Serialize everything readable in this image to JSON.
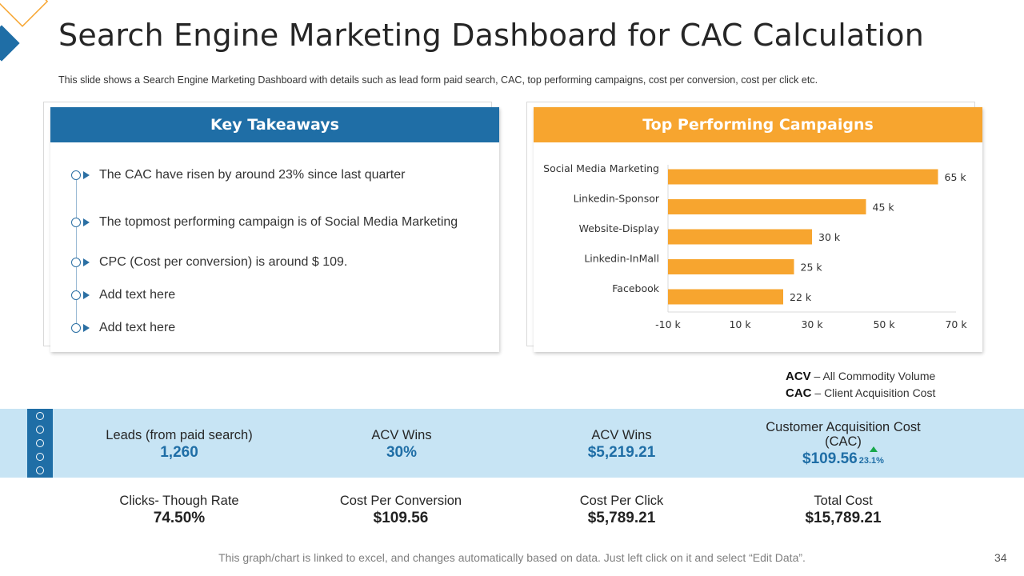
{
  "header": {
    "title": "Search Engine Marketing Dashboard for CAC Calculation",
    "subtitle": "This slide shows a Search Engine Marketing Dashboard with details such as lead form paid search, CAC, top performing campaigns, cost per conversion, cost per click etc."
  },
  "key_takeaways": {
    "title": "Key Takeaways",
    "items": [
      "The CAC have risen by around 23% since last quarter",
      "The topmost performing campaign is of Social Media Marketing",
      "CPC (Cost per conversion)  is around $ 109.",
      "Add text here",
      "Add text here"
    ]
  },
  "top_campaigns": {
    "title": "Top Performing Campaigns"
  },
  "chart_data": {
    "type": "bar",
    "orientation": "horizontal",
    "title": "Top Performing Campaigns",
    "categories": [
      "Social Media Marketing",
      "Linkedin-Sponsor",
      "Website-Display",
      "Linkedin-InMall",
      "Facebook"
    ],
    "values": [
      65,
      45,
      30,
      25,
      22
    ],
    "value_labels": [
      "65 k",
      "45 k",
      "30 k",
      "25 k",
      "22 k"
    ],
    "xlim": [
      -10,
      70
    ],
    "x_ticks": [
      -10,
      10,
      30,
      50,
      70
    ],
    "x_tick_labels": [
      "-10 k",
      "10 k",
      "30 k",
      "50 k",
      "70 k"
    ],
    "bar_color": "#f7a52f",
    "grid": false
  },
  "legend": {
    "acv_abbr": "ACV",
    "acv_full": " – All Commodity Volume",
    "cac_abbr": "CAC",
    "cac_full": " – Client Acquisition Cost"
  },
  "kpis_top": [
    {
      "label": "Leads  (from paid search)",
      "value": "1,260"
    },
    {
      "label": "ACV Wins",
      "value": "30%"
    },
    {
      "label": "ACV Wins",
      "value": "$5,219.21"
    },
    {
      "label_line1": "Customer Acquisition Cost",
      "label_line2": "(CAC)",
      "value": "$109.56",
      "change": "23.1%"
    }
  ],
  "kpis_bottom": [
    {
      "label": "Clicks- Though Rate",
      "value": "74.50%"
    },
    {
      "label": "Cost Per Conversion",
      "value": "$109.56"
    },
    {
      "label": "Cost Per Click",
      "value": "$5,789.21"
    },
    {
      "label": "Total Cost",
      "value": "$15,789.21"
    }
  ],
  "footer": {
    "note": "This graph/chart is linked to excel, and changes automatically based on data. Just left click on it and select “Edit Data”.",
    "page_number": "34"
  },
  "colors": {
    "blue": "#1f6ea6",
    "orange": "#f7a52f",
    "light_blue_band": "#c7e4f4",
    "up_green": "#18a84a"
  }
}
